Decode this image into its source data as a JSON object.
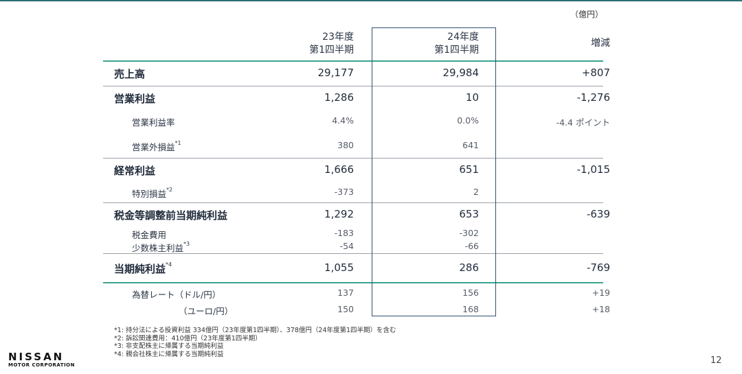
{
  "unit": "（億円）",
  "columns": {
    "prev": [
      "23年度",
      "第1四半期"
    ],
    "curr": [
      "24年度",
      "第1四半期"
    ],
    "diff": "増減"
  },
  "rows": [
    {
      "label": "売上高",
      "sup": "",
      "prev": "29,177",
      "curr": "29,984",
      "diff": "+807"
    },
    {
      "label": "営業利益",
      "sup": "",
      "prev": "1,286",
      "curr": "10",
      "diff": "-1,276"
    },
    {
      "label": "営業利益率",
      "sup": "",
      "prev": "4.4%",
      "curr": "0.0%",
      "diff": "-4.4 ポイント"
    },
    {
      "label": "営業外損益",
      "sup": "*1",
      "prev": "380",
      "curr": "641",
      "diff": ""
    },
    {
      "label": "経常利益",
      "sup": "",
      "prev": "1,666",
      "curr": "651",
      "diff": "-1,015"
    },
    {
      "label": "特別損益",
      "sup": "*2",
      "prev": "-373",
      "curr": "2",
      "diff": ""
    },
    {
      "label": "税金等調整前当期純利益",
      "sup": "",
      "prev": "1,292",
      "curr": "653",
      "diff": "-639"
    },
    {
      "label": "税金費用",
      "sup": "",
      "prev": "-183",
      "curr": "-302",
      "diff": ""
    },
    {
      "label": "少数株主利益",
      "sup": "*3",
      "prev": "-54",
      "curr": "-66",
      "diff": ""
    },
    {
      "label": "当期純利益",
      "sup": "*4",
      "prev": "1,055",
      "curr": "286",
      "diff": "-769"
    },
    {
      "label": "為替レート（ドル/円）",
      "sup": "",
      "prev": "137",
      "curr": "156",
      "diff": "+19"
    },
    {
      "label": "（ユーロ/円）",
      "sup": "",
      "prev": "150",
      "curr": "168",
      "diff": "+18"
    }
  ],
  "notes": [
    "*1: 持分法による投資利益 334億円（23年度第1四半期）、378億円（24年度第1四半期）を含む",
    "*2: 訴訟関連費用：410億円（23年度第1四半期）",
    "*3: 非支配株主に帰属する当期純利益",
    "*4: 親会社株主に帰属する当期純利益"
  ],
  "logo": {
    "brand": "NISSAN",
    "sub": "MOTOR CORPORATION"
  },
  "page_number": "12"
}
